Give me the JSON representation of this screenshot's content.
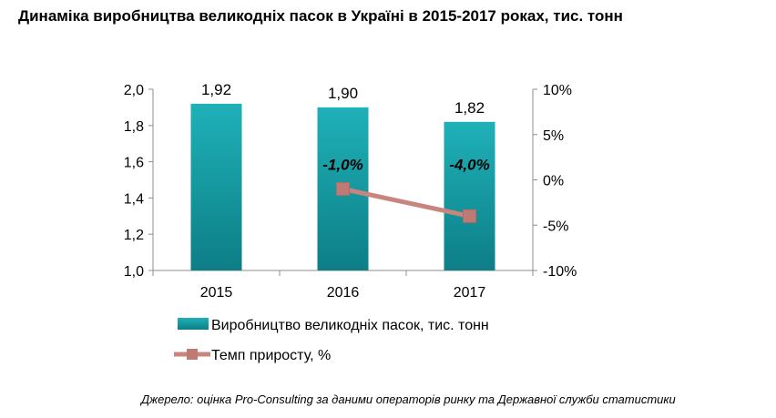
{
  "chart_data": {
    "type": "bar",
    "title": "Динаміка виробництва великодніх пасок в Україні в 2015-2017 роках, тис. тонн",
    "categories": [
      "2015",
      "2016",
      "2017"
    ],
    "series": [
      {
        "name": "Виробництво великодніх пасок, тис. тонн",
        "type": "bar",
        "axis": "left",
        "values": [
          1.92,
          1.9,
          1.82
        ],
        "labels": [
          "1,92",
          "1,90",
          "1,82"
        ],
        "color": "#1aa3ac"
      },
      {
        "name": "Темп приросту, %",
        "type": "line",
        "axis": "right",
        "values": [
          null,
          -1.0,
          -4.0
        ],
        "labels": [
          "",
          "-1,0%",
          "-4,0%"
        ],
        "color": "#c8847e",
        "marker_color": "#c07a74"
      }
    ],
    "left_axis": {
      "ylim": [
        1.0,
        2.0
      ],
      "ticks": [
        1.0,
        1.2,
        1.4,
        1.6,
        1.8,
        2.0
      ],
      "tick_labels": [
        "1,0",
        "1,2",
        "1,4",
        "1,6",
        "1,8",
        "2,0"
      ]
    },
    "right_axis": {
      "ylim": [
        -10,
        10
      ],
      "ticks": [
        -10,
        -5,
        0,
        5,
        10
      ],
      "tick_labels": [
        "-10%",
        "-5%",
        "0%",
        "5%",
        "10%"
      ]
    },
    "grid": false,
    "legend_position": "bottom"
  },
  "source_note": "Джерело:  оцінка Pro-Consulting за даними операторів ринку та Державної служби статистики"
}
